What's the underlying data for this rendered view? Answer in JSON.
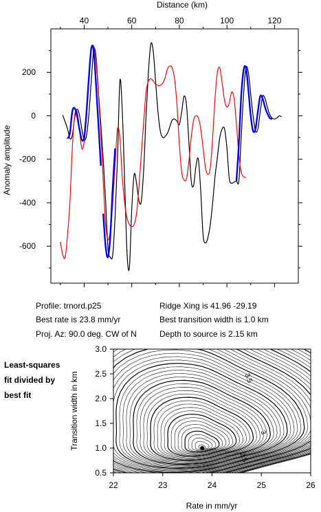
{
  "chart_data": [
    {
      "type": "line",
      "title": "",
      "xlabel": "Distance (km)",
      "ylabel": "Anomaly amplitude",
      "xlim": [
        26,
        130
      ],
      "ylim": [
        -770,
        400
      ],
      "xticks": [
        40,
        60,
        80,
        100,
        120
      ],
      "yticks": [
        200,
        0,
        -200,
        -400,
        -600
      ],
      "grid": false,
      "series": [
        {
          "color": "#000000",
          "points": [
            [
              31,
              3
            ],
            [
              33,
              -60
            ],
            [
              34,
              -105
            ],
            [
              35,
              -90
            ],
            [
              36,
              -10
            ],
            [
              37,
              30
            ],
            [
              38,
              5
            ],
            [
              39,
              -60
            ],
            [
              40,
              -110
            ],
            [
              41,
              -90
            ],
            [
              42,
              10
            ],
            [
              43,
              160
            ],
            [
              44,
              305
            ],
            [
              45,
              270
            ],
            [
              46,
              110
            ],
            [
              47,
              -40
            ],
            [
              48,
              -200
            ],
            [
              49,
              -390
            ],
            [
              50,
              -610
            ],
            [
              51,
              -650
            ],
            [
              52,
              -640
            ],
            [
              53,
              -460
            ],
            [
              54,
              -200
            ],
            [
              55,
              160
            ],
            [
              56,
              30
            ],
            [
              57,
              -300
            ],
            [
              58,
              -630
            ],
            [
              59,
              -700
            ],
            [
              60,
              -430
            ],
            [
              61,
              -270
            ],
            [
              62,
              -310
            ],
            [
              63,
              -390
            ],
            [
              64,
              -395
            ],
            [
              65,
              -250
            ],
            [
              66,
              0
            ],
            [
              67,
              200
            ],
            [
              68,
              330
            ],
            [
              69,
              300
            ],
            [
              70,
              160
            ],
            [
              71,
              20
            ],
            [
              72,
              -70
            ],
            [
              73,
              -100
            ],
            [
              74,
              -95
            ],
            [
              75,
              -80
            ],
            [
              76,
              -50
            ],
            [
              77,
              -20
            ],
            [
              78,
              -15
            ],
            [
              79,
              -25
            ],
            [
              80,
              -40
            ],
            [
              81,
              20
            ],
            [
              82,
              90
            ],
            [
              83,
              50
            ],
            [
              84,
              -120
            ],
            [
              85,
              -300
            ],
            [
              86,
              -320
            ],
            [
              87,
              -230
            ],
            [
              88,
              -200
            ],
            [
              89,
              -350
            ],
            [
              90,
              -550
            ],
            [
              91,
              -585
            ],
            [
              92,
              -560
            ],
            [
              93,
              -500
            ],
            [
              94,
              -400
            ],
            [
              95,
              -280
            ],
            [
              96,
              -190
            ],
            [
              97,
              -100
            ],
            [
              98,
              -60
            ],
            [
              99,
              -60
            ],
            [
              100,
              -150
            ],
            [
              101,
              -290
            ],
            [
              102,
              -310
            ],
            [
              103,
              -305
            ],
            [
              104,
              -300
            ],
            [
              105,
              -300
            ],
            [
              106,
              -100
            ],
            [
              107,
              100
            ],
            [
              108,
              220
            ],
            [
              109,
              200
            ],
            [
              110,
              100
            ],
            [
              111,
              0
            ],
            [
              112,
              -70
            ],
            [
              113,
              -60
            ],
            [
              114,
              20
            ],
            [
              115,
              90
            ],
            [
              116,
              80
            ],
            [
              117,
              40
            ],
            [
              118,
              5
            ],
            [
              119,
              -10
            ],
            [
              120,
              -15
            ],
            [
              121,
              -10
            ],
            [
              122,
              0
            ],
            [
              123,
              -5
            ]
          ]
        },
        {
          "color": "#ff0000",
          "points": [
            [
              30,
              -580
            ],
            [
              31,
              -640
            ],
            [
              32,
              -650
            ],
            [
              33,
              -550
            ],
            [
              34,
              -400
            ],
            [
              35,
              -150
            ],
            [
              36,
              0
            ],
            [
              37,
              20
            ],
            [
              38,
              -60
            ],
            [
              39,
              -150
            ],
            [
              40,
              -120
            ],
            [
              41,
              0
            ],
            [
              42,
              170
            ],
            [
              43,
              300
            ],
            [
              44,
              320
            ],
            [
              45,
              250
            ],
            [
              46,
              100
            ],
            [
              47,
              -80
            ],
            [
              48,
              -300
            ],
            [
              49,
              -500
            ],
            [
              50,
              -570
            ],
            [
              51,
              -530
            ],
            [
              52,
              -400
            ],
            [
              53,
              -220
            ],
            [
              54,
              -60
            ],
            [
              55,
              -100
            ],
            [
              56,
              -280
            ],
            [
              57,
              -400
            ],
            [
              58,
              -470
            ],
            [
              59,
              -500
            ],
            [
              60,
              -510
            ],
            [
              61,
              -500
            ],
            [
              62,
              -450
            ],
            [
              63,
              -330
            ],
            [
              64,
              -180
            ],
            [
              65,
              -30
            ],
            [
              66,
              110
            ],
            [
              67,
              160
            ],
            [
              68,
              170
            ],
            [
              69,
              160
            ],
            [
              70,
              145
            ],
            [
              71,
              140
            ],
            [
              72,
              140
            ],
            [
              73,
              150
            ],
            [
              74,
              175
            ],
            [
              75,
              215
            ],
            [
              76,
              230
            ],
            [
              77,
              220
            ],
            [
              78,
              170
            ],
            [
              79,
              50
            ],
            [
              80,
              -130
            ],
            [
              81,
              -260
            ],
            [
              82,
              -295
            ],
            [
              83,
              -290
            ],
            [
              84,
              -210
            ],
            [
              85,
              -100
            ],
            [
              86,
              -20
            ],
            [
              87,
              0
            ],
            [
              88,
              -10
            ],
            [
              89,
              -60
            ],
            [
              90,
              -150
            ],
            [
              91,
              -240
            ],
            [
              92,
              -270
            ],
            [
              93,
              -240
            ],
            [
              94,
              -100
            ],
            [
              95,
              80
            ],
            [
              96,
              200
            ],
            [
              97,
              220
            ],
            [
              98,
              150
            ],
            [
              99,
              70
            ],
            [
              100,
              40
            ],
            [
              101,
              60
            ],
            [
              102,
              110
            ],
            [
              103,
              80
            ],
            [
              104,
              -40
            ],
            [
              105,
              -180
            ],
            [
              106,
              -260
            ],
            [
              107,
              -280
            ],
            [
              108,
              -285
            ]
          ]
        },
        {
          "color": "#0000ff",
          "segments": [
            [
              [
                33,
                -105
              ],
              [
                34,
                -80
              ],
              [
                35,
                20
              ],
              [
                36,
                35
              ],
              [
                37,
                0
              ],
              [
                38,
                -60
              ],
              [
                39,
                -110
              ],
              [
                40,
                -100
              ],
              [
                41,
                20
              ],
              [
                42,
                180
              ],
              [
                43,
                310
              ],
              [
                44,
                300
              ],
              [
                45,
                140
              ],
              [
                46,
                -40
              ],
              [
                47,
                -230
              ]
            ],
            [
              [
                48,
                -450
              ],
              [
                49,
                -600
              ],
              [
                50,
                -650
              ],
              [
                51,
                -550
              ],
              [
                52,
                -330
              ],
              [
                53,
                -150
              ]
            ],
            [
              [
                104,
                -300
              ],
              [
                105,
                -130
              ],
              [
                106,
                90
              ],
              [
                107,
                210
              ],
              [
                108,
                220
              ],
              [
                109,
                120
              ],
              [
                110,
                0
              ],
              [
                111,
                -70
              ],
              [
                112,
                -60
              ],
              [
                113,
                20
              ],
              [
                114,
                90
              ],
              [
                115,
                80
              ],
              [
                116,
                40
              ],
              [
                117,
                10
              ],
              [
                118,
                -10
              ],
              [
                119,
                -15
              ]
            ]
          ]
        }
      ]
    },
    {
      "type": "heatmap",
      "subtype": "contour",
      "xlabel": "Rate in mm/yr",
      "ylabel": "Transition width in km",
      "xlim": [
        22,
        26
      ],
      "ylim": [
        0.5,
        3.0
      ],
      "xticks": [
        22,
        23,
        24,
        25,
        26
      ],
      "yticks": [
        0.5,
        1.0,
        1.5,
        2.0,
        2.5,
        3.0
      ],
      "minimum": {
        "x": 23.8,
        "y": 1.0
      },
      "contour_labels": [
        {
          "text": "3.5",
          "x": 24.7,
          "y": 2.4
        },
        {
          "text": "3",
          "x": 25.0,
          "y": 1.3
        },
        {
          "text": "2.5",
          "x": 24.6,
          "y": 0.8
        }
      ],
      "side_note": [
        "Least-squares",
        "fit divided by",
        "best fit"
      ]
    }
  ],
  "info": {
    "profile": "Profile: trnord.p25",
    "best_rate": "Best rate is 23.8 mm/yr",
    "proj_az": "Proj. Az: 90.0 deg. CW of N",
    "ridge_xing": "Ridge Xing is 41.96 -29.19",
    "best_width": "Best transition width is 1.0 km",
    "depth": "Depth to source is   2.15 km"
  }
}
